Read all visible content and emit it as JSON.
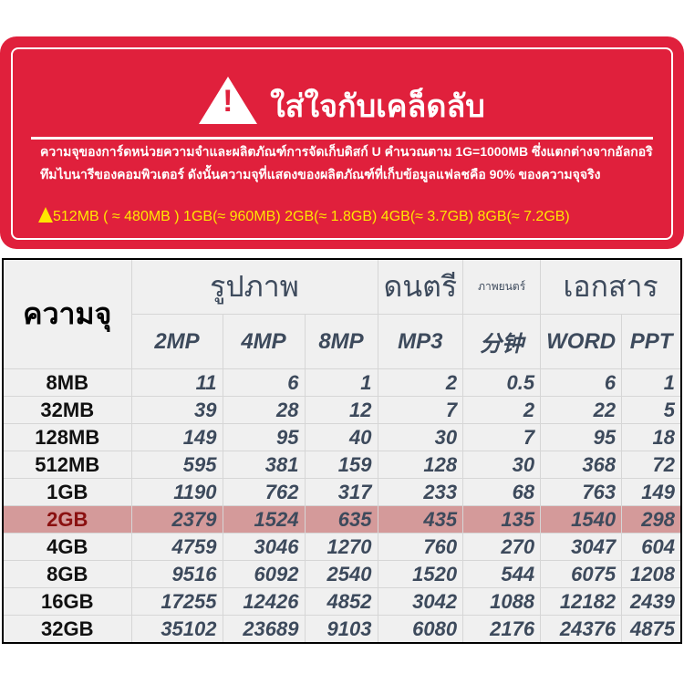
{
  "banner": {
    "title": "ใส่ใจกับเคล็ดลับ",
    "warning_icon": "exclamation-triangle",
    "note": "ความจุของการ์ดหน่วยความจำและผลิตภัณฑ์การจัดเก็บดิสก์ U คำนวณตาม 1G=1000MB ซึ่งแตกต่างจากอัลกอริทึมไบนารีของคอมพิวเตอร์ ดังนั้นความจุที่แสดงของผลิตภัณฑ์ที่เก็บข้อมูลแฟลชคือ 90% ของความจุจริง",
    "approx": "512MB ( ≈ 480MB )  1GB(≈ 960MB)  2GB(≈ 1.8GB)  4GB(≈ 3.7GB)  8GB(≈ 7.2GB)"
  },
  "table": {
    "capacity_header": "ความจุ",
    "groups": [
      "รูปภาพ",
      "ดนตรี",
      "ภาพยนตร์",
      "เอกสาร"
    ],
    "columns": [
      "2MP",
      "4MP",
      "8MP",
      "MP3",
      "分钟",
      "WORD",
      "PPT"
    ],
    "rows": [
      {
        "cap": "8MB",
        "v": [
          "11",
          "6",
          "1",
          "2",
          "0.5",
          "6",
          "1"
        ]
      },
      {
        "cap": "32MB",
        "v": [
          "39",
          "28",
          "12",
          "7",
          "2",
          "22",
          "5"
        ]
      },
      {
        "cap": "128MB",
        "v": [
          "149",
          "95",
          "40",
          "30",
          "7",
          "95",
          "18"
        ]
      },
      {
        "cap": "512MB",
        "v": [
          "595",
          "381",
          "159",
          "128",
          "30",
          "368",
          "72"
        ]
      },
      {
        "cap": "1GB",
        "v": [
          "1190",
          "762",
          "317",
          "233",
          "68",
          "763",
          "149"
        ]
      },
      {
        "cap": "2GB",
        "v": [
          "2379",
          "1524",
          "635",
          "435",
          "135",
          "1540",
          "298"
        ]
      },
      {
        "cap": "4GB",
        "v": [
          "4759",
          "3046",
          "1270",
          "760",
          "270",
          "3047",
          "604"
        ]
      },
      {
        "cap": "8GB",
        "v": [
          "9516",
          "6092",
          "2540",
          "1520",
          "544",
          "6075",
          "1208"
        ]
      },
      {
        "cap": "16GB",
        "v": [
          "17255",
          "12426",
          "4852",
          "3042",
          "1088",
          "12182",
          "2439"
        ]
      },
      {
        "cap": "32GB",
        "v": [
          "35102",
          "23689",
          "9103",
          "6080",
          "2176",
          "24376",
          "4875"
        ]
      }
    ],
    "highlight_color": "#d49a9a"
  }
}
